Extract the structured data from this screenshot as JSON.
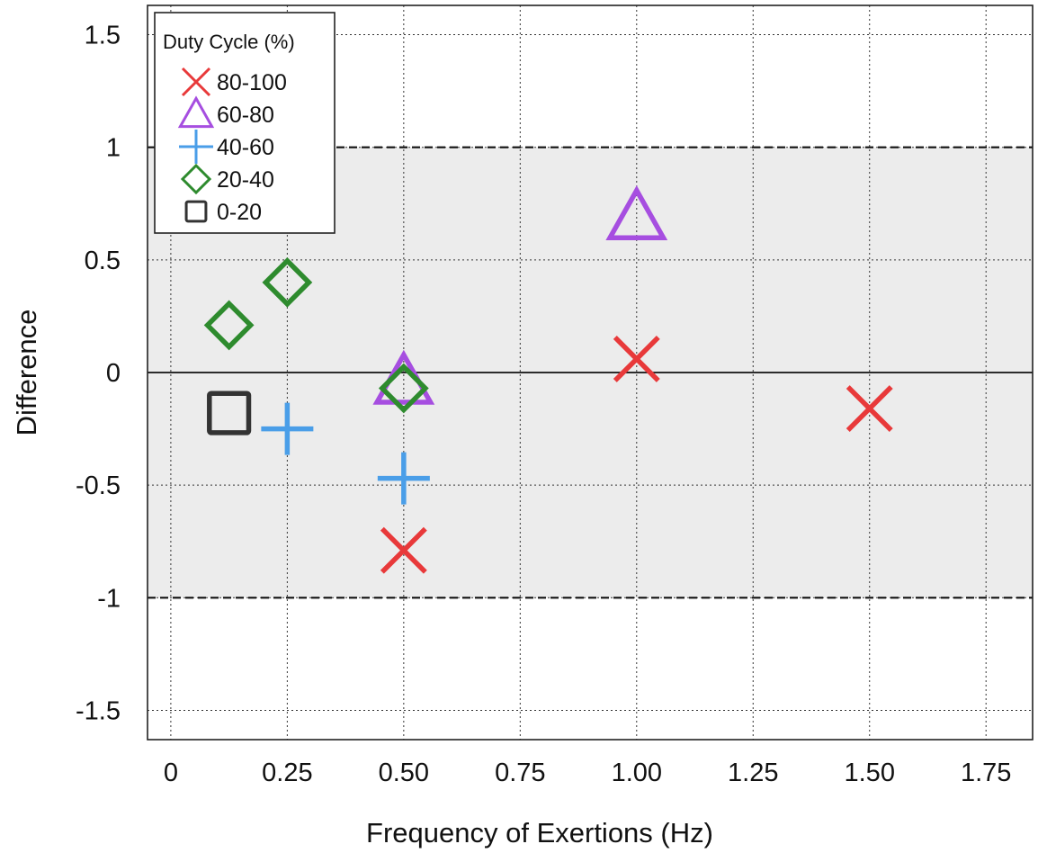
{
  "chart_data": {
    "type": "scatter",
    "title": "",
    "xlabel": "Frequency of Exertions (Hz)",
    "ylabel": "Difference",
    "xlim": [
      -0.05,
      1.85
    ],
    "ylim": [
      -1.63,
      1.63
    ],
    "x_ticks": [
      0,
      0.25,
      0.5,
      0.75,
      1.0,
      1.25,
      1.5,
      1.75
    ],
    "x_tick_labels": [
      "0",
      "0.25",
      "0.50",
      "0.75",
      "1.00",
      "1.25",
      "1.50",
      "1.75"
    ],
    "y_ticks": [
      1.5,
      1,
      0.5,
      0,
      -0.5,
      -1,
      -1.5
    ],
    "y_tick_labels": [
      "1.5",
      "1",
      "0.5",
      "0",
      "-0.5",
      "-1",
      "-1.5"
    ],
    "grid": true,
    "band": {
      "from": -1,
      "to": 1,
      "color": "#ececec"
    },
    "reference_lines": [
      {
        "y": 1,
        "style": "dashed"
      },
      {
        "y": -1,
        "style": "dashed"
      },
      {
        "y": 0,
        "style": "solid"
      }
    ],
    "legend": {
      "title": "Duty Cycle (%)",
      "placement": "top-left"
    },
    "series": [
      {
        "name": "80-100",
        "marker": "x",
        "color": "#e8393a",
        "points": [
          [
            0.5,
            -0.79
          ],
          [
            1.0,
            0.06
          ],
          [
            1.5,
            -0.16
          ]
        ]
      },
      {
        "name": "60-80",
        "marker": "triangle",
        "color": "#a64ee0",
        "points": [
          [
            0.5,
            -0.04
          ],
          [
            1.0,
            0.69
          ]
        ]
      },
      {
        "name": "40-60",
        "marker": "plus",
        "color": "#4a9ee8",
        "points": [
          [
            0.25,
            -0.25
          ],
          [
            0.5,
            -0.47
          ]
        ]
      },
      {
        "name": "20-40",
        "marker": "diamond",
        "color": "#2e8b2e",
        "points": [
          [
            0.125,
            0.21
          ],
          [
            0.25,
            0.4
          ],
          [
            0.5,
            -0.07
          ]
        ]
      },
      {
        "name": "0-20",
        "marker": "square",
        "color": "#333333",
        "points": [
          [
            0.125,
            -0.18
          ]
        ]
      }
    ]
  }
}
